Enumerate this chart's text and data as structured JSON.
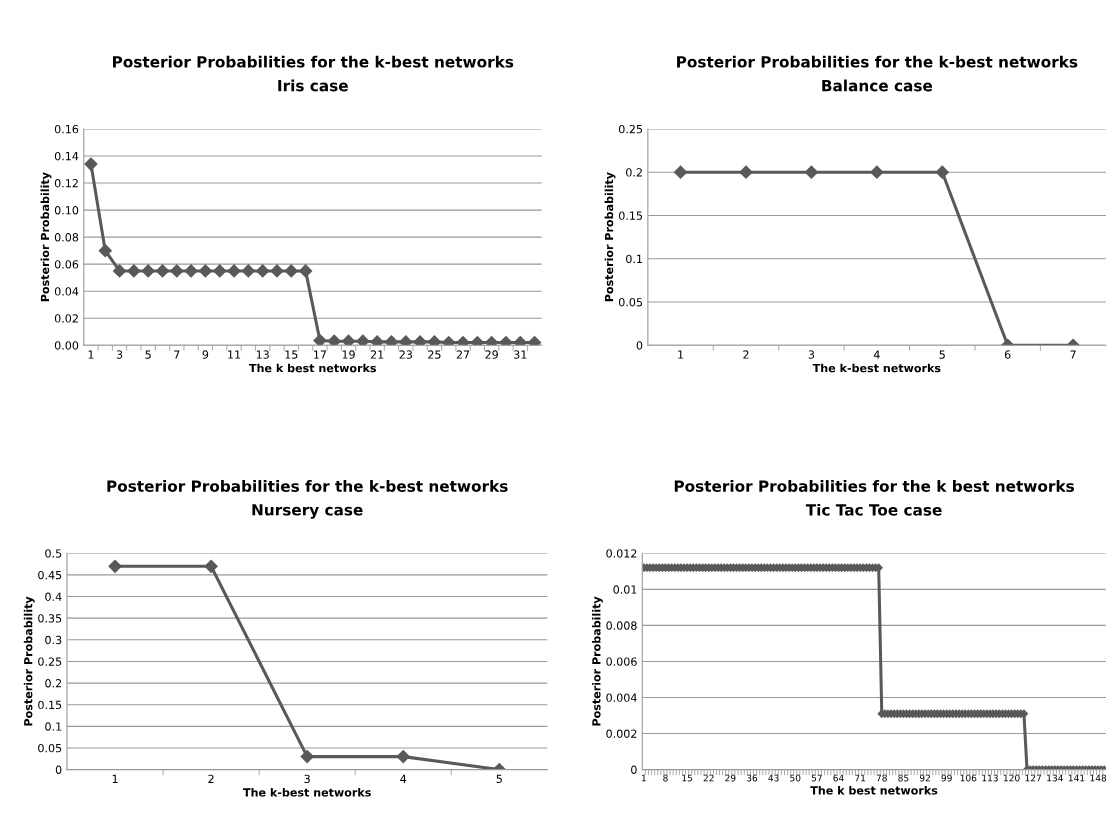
{
  "chart_data": [
    {
      "type": "line",
      "title": "Posterior Probabilities for the k-best networks",
      "subtitle": "Iris case",
      "xlabel": "The k best networks",
      "ylabel": "Posterior Probability",
      "categories": [
        "1",
        null,
        "3",
        null,
        "5",
        null,
        "7",
        null,
        "9",
        null,
        "11",
        null,
        "13",
        null,
        "15",
        null,
        "17",
        null,
        "19",
        null,
        "21",
        null,
        "23",
        null,
        "25",
        null,
        "27",
        null,
        "29",
        null,
        "31",
        null
      ],
      "series": [
        {
          "color": "#595959",
          "values": [
            0.134,
            0.07,
            0.055,
            0.055,
            0.055,
            0.055,
            0.055,
            0.055,
            0.055,
            0.055,
            0.055,
            0.055,
            0.055,
            0.055,
            0.055,
            0.055,
            0.0035,
            0.003,
            0.003,
            0.003,
            0.0025,
            0.0025,
            0.0025,
            0.0025,
            0.0025,
            0.002,
            0.002,
            0.002,
            0.002,
            0.002,
            0.002,
            0.002
          ]
        }
      ],
      "ylim": [
        0,
        0.16
      ],
      "yticks": [
        {
          "value": 0,
          "label": "0.00"
        },
        {
          "value": 0.02,
          "label": "0.02"
        },
        {
          "value": 0.04,
          "label": "0.04"
        },
        {
          "value": 0.06,
          "label": "0.06"
        },
        {
          "value": 0.08,
          "label": "0.08"
        },
        {
          "value": 0.1,
          "label": "0.10"
        },
        {
          "value": 0.12,
          "label": "0.12"
        },
        {
          "value": 0.14,
          "label": "0.14"
        },
        {
          "value": 0.16,
          "label": "0.16"
        }
      ],
      "grid": "y",
      "marker": "diamond",
      "line_style": "solid"
    },
    {
      "type": "line",
      "title": "Posterior Probabilities for the k-best networks",
      "subtitle": "Balance case",
      "xlabel": "The k-best networks",
      "ylabel": "Posterior Probability",
      "categories": [
        "1",
        "2",
        "3",
        "4",
        "5",
        "6",
        "7"
      ],
      "series": [
        {
          "color": "#595959",
          "values": [
            0.2,
            0.2,
            0.2,
            0.2,
            0.2,
            0,
            0
          ]
        }
      ],
      "ylim": [
        0,
        0.25
      ],
      "yticks": [
        0,
        0.05,
        0.1,
        0.15,
        0.2,
        0.25
      ],
      "grid": "y",
      "marker": "diamond",
      "line_style": "solid"
    },
    {
      "type": "line",
      "title": "Posterior Probabilities for the k-best networks",
      "subtitle": "Nursery case",
      "xlabel": "The k-best networks",
      "ylabel": "Posterior Probability",
      "categories": [
        "1",
        "2",
        "3",
        "4",
        "5"
      ],
      "series": [
        {
          "color": "#595959",
          "values": [
            0.47,
            0.47,
            0.03,
            0.03,
            0
          ]
        }
      ],
      "ylim": [
        0,
        0.5
      ],
      "yticks": [
        0,
        0.05,
        0.1,
        0.15,
        0.2,
        0.25,
        0.3,
        0.35,
        0.4,
        0.45,
        0.5
      ],
      "grid": "y",
      "marker": "diamond",
      "line_style": "solid"
    },
    {
      "type": "line",
      "title": "Posterior Probabilities for the k best networks",
      "subtitle": "Tic Tac Toe case",
      "xlabel": "The k best networks",
      "ylabel": "Posterior Probability",
      "categories": [
        "1",
        null,
        null,
        null,
        null,
        null,
        null,
        "8",
        null,
        null,
        null,
        null,
        null,
        null,
        "15",
        null,
        null,
        null,
        null,
        null,
        null,
        "22",
        null,
        null,
        null,
        null,
        null,
        null,
        "29",
        null,
        null,
        null,
        null,
        null,
        null,
        "36",
        null,
        null,
        null,
        null,
        null,
        null,
        "43",
        null,
        null,
        null,
        null,
        null,
        null,
        "50",
        null,
        null,
        null,
        null,
        null,
        null,
        "57",
        null,
        null,
        null,
        null,
        null,
        null,
        "64",
        null,
        null,
        null,
        null,
        null,
        null,
        "71",
        null,
        null,
        null,
        null,
        null,
        null,
        "78",
        null,
        null,
        null,
        null,
        null,
        null,
        "85",
        null,
        null,
        null,
        null,
        null,
        null,
        "92",
        null,
        null,
        null,
        null,
        null,
        null,
        "99",
        null,
        null,
        null,
        null,
        null,
        null,
        "106",
        null,
        null,
        null,
        null,
        null,
        null,
        "113",
        null,
        null,
        null,
        null,
        null,
        null,
        "120",
        null,
        null,
        null,
        null,
        null,
        null,
        "127",
        null,
        null,
        null,
        null,
        null,
        null,
        "134",
        null,
        null,
        null,
        null,
        null,
        null,
        "141",
        null,
        null,
        null,
        null,
        null,
        null,
        "148",
        null,
        null
      ],
      "series": [
        {
          "color": "#595959",
          "values": [
            0.0112,
            0.0112,
            0.0112,
            0.0112,
            0.0112,
            0.0112,
            0.0112,
            0.0112,
            0.0112,
            0.0112,
            0.0112,
            0.0112,
            0.0112,
            0.0112,
            0.0112,
            0.0112,
            0.0112,
            0.0112,
            0.0112,
            0.0112,
            0.0112,
            0.0112,
            0.0112,
            0.0112,
            0.0112,
            0.0112,
            0.0112,
            0.0112,
            0.0112,
            0.0112,
            0.0112,
            0.0112,
            0.0112,
            0.0112,
            0.0112,
            0.0112,
            0.0112,
            0.0112,
            0.0112,
            0.0112,
            0.0112,
            0.0112,
            0.0112,
            0.0112,
            0.0112,
            0.0112,
            0.0112,
            0.0112,
            0.0112,
            0.0112,
            0.0112,
            0.0112,
            0.0112,
            0.0112,
            0.0112,
            0.0112,
            0.0112,
            0.0112,
            0.0112,
            0.0112,
            0.0112,
            0.0112,
            0.0112,
            0.0112,
            0.0112,
            0.0112,
            0.0112,
            0.0112,
            0.0112,
            0.0112,
            0.0112,
            0.0112,
            0.0112,
            0.0112,
            0.0112,
            0.0112,
            0.0112,
            0.0031,
            0.0031,
            0.0031,
            0.0031,
            0.0031,
            0.0031,
            0.0031,
            0.0031,
            0.0031,
            0.0031,
            0.0031,
            0.0031,
            0.0031,
            0.0031,
            0.0031,
            0.0031,
            0.0031,
            0.0031,
            0.0031,
            0.0031,
            0.0031,
            0.0031,
            0.0031,
            0.0031,
            0.0031,
            0.0031,
            0.0031,
            0.0031,
            0.0031,
            0.0031,
            0.0031,
            0.0031,
            0.0031,
            0.0031,
            0.0031,
            0.0031,
            0.0031,
            0.0031,
            0.0031,
            0.0031,
            0.0031,
            0.0031,
            0.0031,
            0.0031,
            0.0031,
            0.0031,
            0.0031,
            0,
            0,
            0,
            0,
            0,
            0,
            0,
            0,
            0,
            0,
            0,
            0,
            0,
            0,
            0,
            0,
            0,
            0,
            0,
            0,
            0,
            0,
            0,
            0,
            0,
            0
          ]
        }
      ],
      "ylim": [
        0,
        0.012
      ],
      "yticks": [
        0,
        0.002,
        0.004,
        0.006,
        0.008,
        0.01,
        0.012
      ],
      "grid": "y",
      "marker": "diamond",
      "line_style": "solid"
    }
  ]
}
